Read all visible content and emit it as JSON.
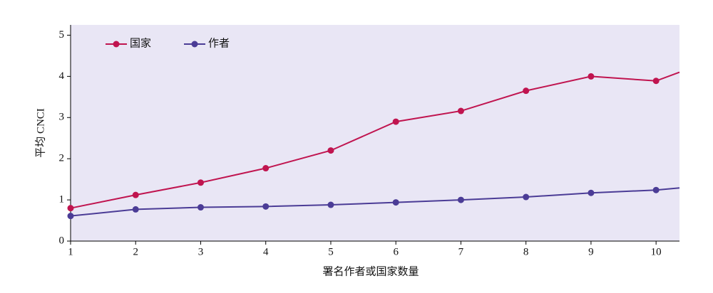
{
  "chart_data": {
    "type": "line",
    "x_label": "署名作者或国家数量",
    "y_label": "平均 CNCI",
    "x": [
      1,
      2,
      3,
      4,
      5,
      6,
      7,
      8,
      9,
      10,
      10.36
    ],
    "series": [
      {
        "name": "国家",
        "color": "#c0144f",
        "values": [
          0.8,
          1.12,
          1.42,
          1.77,
          2.2,
          2.9,
          3.16,
          3.65,
          4.0,
          3.89,
          4.1
        ]
      },
      {
        "name": "作者",
        "color": "#4b3c96",
        "values": [
          0.61,
          0.77,
          0.82,
          0.84,
          0.88,
          0.94,
          1.0,
          1.07,
          1.17,
          1.24,
          1.29
        ]
      }
    ],
    "xlim": [
      1,
      10.36
    ],
    "ylim": [
      0,
      5.25
    ],
    "xticks": [
      1,
      2,
      3,
      4,
      5,
      6,
      7,
      8,
      9,
      10
    ],
    "yticks": [
      0,
      1,
      2,
      3,
      4,
      5
    ],
    "legend": "upper left"
  }
}
